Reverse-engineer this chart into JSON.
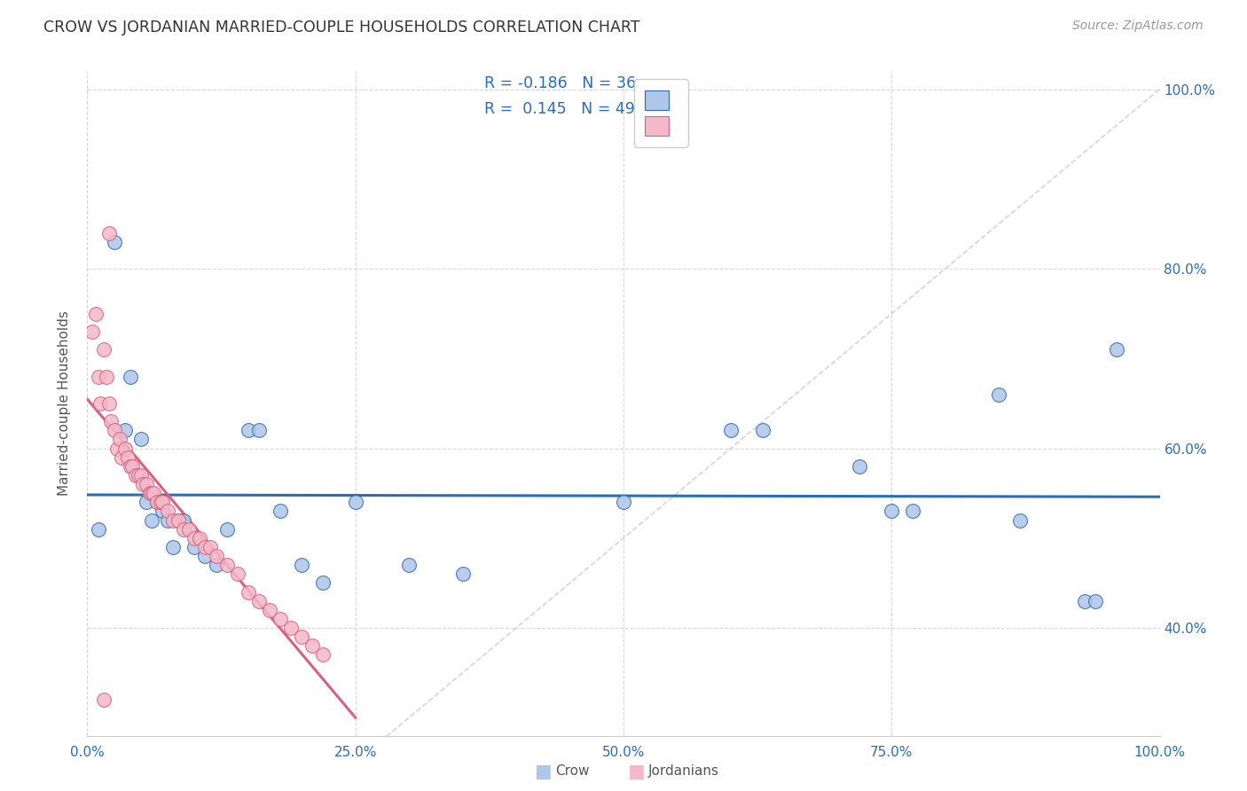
{
  "title": "CROW VS JORDANIAN MARRIED-COUPLE HOUSEHOLDS CORRELATION CHART",
  "source": "Source: ZipAtlas.com",
  "ylabel": "Married-couple Households",
  "crow_color": "#aec6e8",
  "jordanian_color": "#f4b8c8",
  "crow_line_color": "#2b6cb8",
  "jordanian_line_color": "#d96080",
  "diagonal_color": "#cccccc",
  "r_crow": -0.186,
  "n_crow": 36,
  "r_jordanian": 0.145,
  "n_jordanian": 49,
  "crow_points_x": [
    1.0,
    2.5,
    3.5,
    4.0,
    5.0,
    5.5,
    6.0,
    6.5,
    7.0,
    7.5,
    8.0,
    8.5,
    9.0,
    10.0,
    11.0,
    12.0,
    13.0,
    15.0,
    16.0,
    18.0,
    20.0,
    22.0,
    25.0,
    30.0,
    35.0,
    50.0,
    60.0,
    63.0,
    72.0,
    75.0,
    77.0,
    85.0,
    87.0,
    93.0,
    94.0,
    96.0
  ],
  "crow_points_y": [
    51.0,
    83.0,
    62.0,
    68.0,
    61.0,
    54.0,
    52.0,
    54.0,
    53.0,
    52.0,
    49.0,
    52.0,
    52.0,
    49.0,
    48.0,
    47.0,
    51.0,
    62.0,
    62.0,
    53.0,
    47.0,
    45.0,
    54.0,
    47.0,
    46.0,
    54.0,
    62.0,
    62.0,
    58.0,
    53.0,
    53.0,
    66.0,
    52.0,
    43.0,
    43.0,
    71.0
  ],
  "jordanian_points_x": [
    0.5,
    0.8,
    1.0,
    1.2,
    1.5,
    1.8,
    2.0,
    2.2,
    2.5,
    2.8,
    3.0,
    3.2,
    3.5,
    3.8,
    4.0,
    4.2,
    4.5,
    4.8,
    5.0,
    5.2,
    5.5,
    5.8,
    6.0,
    6.2,
    6.5,
    6.8,
    7.0,
    7.5,
    8.0,
    8.5,
    9.0,
    9.5,
    10.0,
    10.5,
    11.0,
    11.5,
    12.0,
    13.0,
    14.0,
    15.0,
    16.0,
    17.0,
    18.0,
    19.0,
    20.0,
    21.0,
    22.0,
    2.0,
    1.5
  ],
  "jordanian_points_y": [
    73.0,
    75.0,
    68.0,
    65.0,
    71.0,
    68.0,
    65.0,
    63.0,
    62.0,
    60.0,
    61.0,
    59.0,
    60.0,
    59.0,
    58.0,
    58.0,
    57.0,
    57.0,
    57.0,
    56.0,
    56.0,
    55.0,
    55.0,
    55.0,
    54.0,
    54.0,
    54.0,
    53.0,
    52.0,
    52.0,
    51.0,
    51.0,
    50.0,
    50.0,
    49.0,
    49.0,
    48.0,
    47.0,
    46.0,
    44.0,
    43.0,
    42.0,
    41.0,
    40.0,
    39.0,
    38.0,
    37.0,
    84.0,
    32.0
  ],
  "xlim": [
    0,
    100
  ],
  "ylim": [
    28,
    102
  ],
  "xticks": [
    0,
    25,
    50,
    75,
    100
  ],
  "yticks_right": [
    40,
    60,
    80,
    100
  ],
  "bottom_legend_labels": [
    "Crow",
    "Jordanians"
  ]
}
